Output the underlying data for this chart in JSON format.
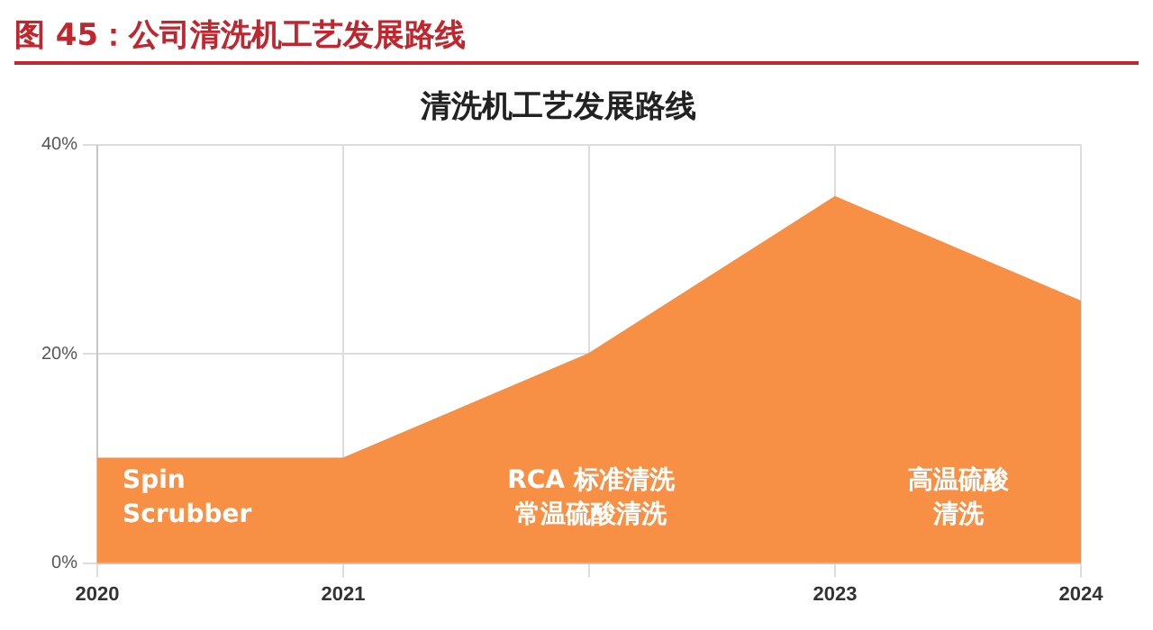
{
  "chart_data": {
    "type": "area",
    "title": "图 45：公司清洗机工艺发展路线",
    "subtitle": "清洗机工艺发展路线",
    "x": [
      2020,
      2021,
      2022,
      2023,
      2024
    ],
    "series": [
      {
        "color": "#f78f45",
        "values": [
          10,
          10,
          20,
          35,
          25
        ]
      }
    ],
    "xlim": [
      2020,
      2024
    ],
    "xticks": [
      2020,
      2021,
      {
        "value": 2022,
        "label": null
      },
      2023,
      2024
    ],
    "ylim": [
      0,
      40
    ],
    "yticks": [
      {
        "value": 0,
        "label": "0%"
      },
      {
        "value": 20,
        "label": "20%"
      },
      {
        "value": 40,
        "label": "40%"
      }
    ],
    "grid": true,
    "legend": false,
    "annotations": [
      "Spin Scrubber",
      "RCA 标准清洗常温硫酸清洗",
      "高温硫酸清洗"
    ]
  }
}
